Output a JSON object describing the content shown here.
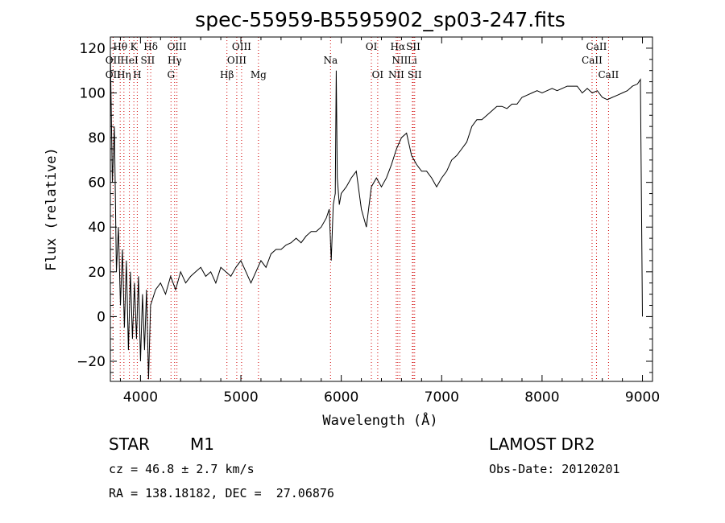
{
  "chart_data": {
    "type": "line",
    "title": "spec-55959-B5595902_sp03-247.fits",
    "xlabel": "Wavelength (Å)",
    "ylabel": "Flux (relative)",
    "xlim": [
      3700,
      9100
    ],
    "ylim": [
      -29,
      125
    ],
    "x_ticks": [
      4000,
      5000,
      6000,
      7000,
      8000,
      9000
    ],
    "y_ticks": [
      -20,
      0,
      20,
      40,
      60,
      80,
      100,
      120
    ],
    "grid": false,
    "series": [
      {
        "x": [
          3700,
          3720,
          3740,
          3760,
          3780,
          3800,
          3820,
          3840,
          3860,
          3880,
          3900,
          3920,
          3940,
          3960,
          3980,
          4000,
          4020,
          4040,
          4060,
          4080,
          4100,
          4150,
          4200,
          4250,
          4300,
          4350,
          4400,
          4450,
          4500,
          4550,
          4600,
          4650,
          4700,
          4750,
          4800,
          4850,
          4900,
          4950,
          5000,
          5050,
          5100,
          5150,
          5200,
          5250,
          5300,
          5350,
          5400,
          5450,
          5500,
          5550,
          5600,
          5650,
          5700,
          5750,
          5800,
          5850,
          5880,
          5900,
          5920,
          5940,
          5950,
          5960,
          5980,
          6000,
          6050,
          6100,
          6150,
          6200,
          6250,
          6300,
          6350,
          6400,
          6450,
          6500,
          6550,
          6600,
          6650,
          6700,
          6750,
          6800,
          6850,
          6900,
          6950,
          7000,
          7050,
          7100,
          7150,
          7200,
          7250,
          7300,
          7350,
          7400,
          7450,
          7500,
          7550,
          7600,
          7650,
          7700,
          7750,
          7800,
          7850,
          7900,
          7950,
          8000,
          8050,
          8100,
          8150,
          8200,
          8250,
          8300,
          8350,
          8400,
          8450,
          8500,
          8550,
          8600,
          8650,
          8700,
          8750,
          8800,
          8850,
          8900,
          8950,
          8980,
          9000
        ],
        "y": [
          118,
          60,
          85,
          20,
          40,
          5,
          30,
          -5,
          25,
          -15,
          20,
          -10,
          15,
          -10,
          18,
          -20,
          10,
          -15,
          12,
          -28,
          5,
          12,
          15,
          10,
          18,
          12,
          20,
          15,
          18,
          20,
          22,
          18,
          20,
          15,
          22,
          20,
          18,
          22,
          25,
          20,
          15,
          20,
          25,
          22,
          28,
          30,
          30,
          32,
          33,
          35,
          33,
          36,
          38,
          38,
          40,
          44,
          48,
          25,
          50,
          55,
          110,
          62,
          50,
          55,
          58,
          62,
          65,
          48,
          40,
          58,
          62,
          58,
          62,
          68,
          75,
          80,
          82,
          72,
          68,
          65,
          65,
          62,
          58,
          62,
          65,
          70,
          72,
          75,
          78,
          85,
          88,
          88,
          90,
          92,
          94,
          94,
          93,
          95,
          95,
          98,
          99,
          100,
          101,
          100,
          101,
          102,
          101,
          102,
          103,
          103,
          103,
          100,
          102,
          100,
          101,
          98,
          97,
          98,
          99,
          100,
          101,
          103,
          104,
          106,
          0
        ]
      }
    ],
    "line_labels": [
      {
        "text": "Hθ",
        "wl": 3798,
        "row": 1
      },
      {
        "text": "OII",
        "wl": 3727,
        "row": 2
      },
      {
        "text": "OII",
        "wl": 3727,
        "row": 3
      },
      {
        "text": "K",
        "wl": 3934,
        "row": 1
      },
      {
        "text": "HeI",
        "wl": 3889,
        "row": 2
      },
      {
        "text": "SII",
        "wl": 4072,
        "row": 2
      },
      {
        "text": "Hη",
        "wl": 3835,
        "row": 3
      },
      {
        "text": "H",
        "wl": 3968,
        "row": 3
      },
      {
        "text": "Hδ",
        "wl": 4102,
        "row": 1
      },
      {
        "text": "OIII",
        "wl": 4363,
        "row": 1
      },
      {
        "text": "Hγ",
        "wl": 4340,
        "row": 2
      },
      {
        "text": "G",
        "wl": 4304,
        "row": 3
      },
      {
        "text": "OIII",
        "wl": 5007,
        "row": 1
      },
      {
        "text": "OIII",
        "wl": 4959,
        "row": 2
      },
      {
        "text": "Hβ",
        "wl": 4861,
        "row": 3
      },
      {
        "text": "Mg",
        "wl": 5175,
        "row": 3
      },
      {
        "text": "Na",
        "wl": 5893,
        "row": 2
      },
      {
        "text": "OI",
        "wl": 6300,
        "row": 1
      },
      {
        "text": "OI",
        "wl": 6363,
        "row": 3
      },
      {
        "text": "Hα",
        "wl": 6563,
        "row": 1
      },
      {
        "text": "SII",
        "wl": 6717,
        "row": 1
      },
      {
        "text": "NII",
        "wl": 6583,
        "row": 2
      },
      {
        "text": "Li",
        "wl": 6708,
        "row": 2
      },
      {
        "text": "NII",
        "wl": 6548,
        "row": 3
      },
      {
        "text": "SII",
        "wl": 6731,
        "row": 3
      },
      {
        "text": "CaII",
        "wl": 8542,
        "row": 1
      },
      {
        "text": "CaII",
        "wl": 8498,
        "row": 2
      },
      {
        "text": "CaII",
        "wl": 8662,
        "row": 3
      }
    ],
    "line_marks": [
      3727,
      3798,
      3835,
      3889,
      3934,
      3968,
      4072,
      4102,
      4304,
      4340,
      4363,
      4861,
      4959,
      5007,
      5175,
      5893,
      6300,
      6363,
      6548,
      6563,
      6583,
      6708,
      6717,
      6731,
      8498,
      8542,
      8662
    ],
    "mark_color": "#d00000"
  },
  "info": {
    "object_class": "STAR",
    "subclass": "M1",
    "survey": "LAMOST DR2",
    "cz": "cz = 46.8 ± 2.7 km/s",
    "obs_date": "Obs-Date: 20120201",
    "radec": "RA = 138.18182, DEC =  27.06876"
  }
}
